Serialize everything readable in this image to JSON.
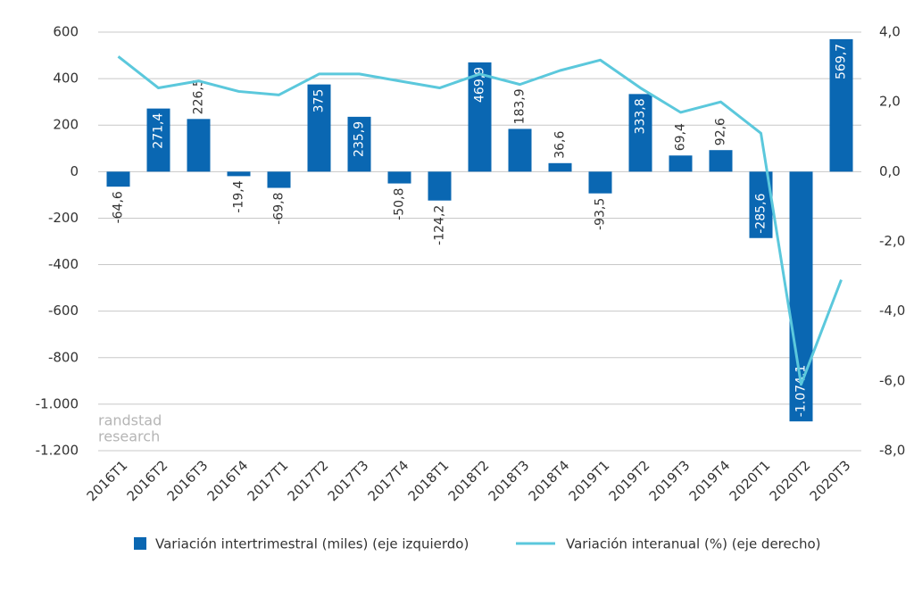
{
  "chart_data": {
    "type": "bar_line",
    "categories": [
      "2016T1",
      "2016T2",
      "2016T3",
      "2016T4",
      "2017T1",
      "2017T2",
      "2017T3",
      "2017T4",
      "2018T1",
      "2018T2",
      "2018T3",
      "2018T4",
      "2019T1",
      "2019T2",
      "2019T3",
      "2019T4",
      "2020T1",
      "2020T2",
      "2020T3"
    ],
    "series": [
      {
        "name": "Variación intertrimestral (miles) (eje izquierdo)",
        "type": "bar",
        "color": "#0a67b2",
        "values": [
          -64.6,
          271.4,
          226.5,
          -19.4,
          -69.8,
          375,
          235.9,
          -50.8,
          -124.2,
          469.9,
          183.9,
          36.6,
          -93.5,
          333.8,
          69.4,
          92.6,
          -285.6,
          -1074.1,
          569.7
        ],
        "value_labels": [
          "-64,6",
          "271,4",
          "226,5",
          "-19,4",
          "-69,8",
          "375",
          "235,9",
          "-50,8",
          "-124,2",
          "469,9",
          "183,9",
          "36,6",
          "-93,5",
          "333,8",
          "69,4",
          "92,6",
          "-285,6",
          "-1.074,1",
          "569,7"
        ]
      },
      {
        "name": "Variación interanual (%) (eje derecho)",
        "type": "line",
        "axis": "y2",
        "color": "#5bc8dc",
        "values": [
          3.3,
          2.4,
          2.6,
          2.3,
          2.2,
          2.8,
          2.8,
          2.6,
          2.4,
          2.8,
          2.5,
          2.9,
          3.2,
          2.4,
          1.7,
          2.0,
          1.1,
          -6.1,
          -3.1
        ]
      }
    ],
    "ylim": [
      -1200,
      600
    ],
    "yticks": [
      {
        "value": -1200,
        "label": "-1.200"
      },
      {
        "value": -1000,
        "label": "-1.000"
      },
      -800,
      -600,
      -400,
      -200,
      0,
      200,
      400,
      600
    ],
    "y2lim": [
      -8,
      4
    ],
    "y2ticks": [
      {
        "value": -8,
        "label": "-8,0"
      },
      {
        "value": -6,
        "label": "-6,0"
      },
      {
        "value": -4,
        "label": "-4,0"
      },
      {
        "value": -2,
        "label": "-2,0"
      },
      {
        "value": 0,
        "label": "0,0"
      },
      {
        "value": 2,
        "label": "2,0"
      },
      {
        "value": 4,
        "label": "4,0"
      }
    ],
    "grid": true,
    "watermark": [
      "randstad",
      "research"
    ]
  }
}
